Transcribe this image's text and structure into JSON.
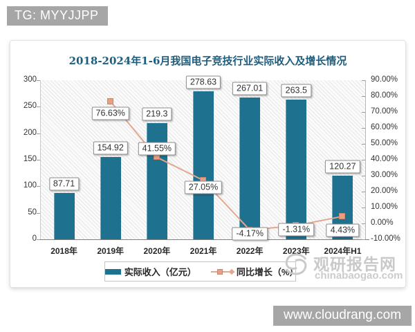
{
  "badges": {
    "tg": "TG: MYYJJPP",
    "site": "www.cloudrang.com"
  },
  "watermark": {
    "name": "观研报告网",
    "domain": "chinabaogao.com"
  },
  "chart_data": {
    "type": "bar+line combo",
    "title": "2018-2024年1-6月我国电子竞技行业实际收入及增长情况",
    "categories": [
      "2018年",
      "2019年",
      "2020年",
      "2021年",
      "2022年",
      "2023年",
      "2024年H1"
    ],
    "series": [
      {
        "name": "实际收入（亿元）",
        "type": "bar",
        "axis": "left",
        "color": "#1f7190",
        "values": [
          87.71,
          154.92,
          219.3,
          278.63,
          267.01,
          263.5,
          120.27
        ],
        "labels": [
          "87.71",
          "154.92",
          "219.3",
          "278.63",
          "267.01",
          "263.5",
          "120.27"
        ]
      },
      {
        "name": "同比增长（%）",
        "type": "line",
        "axis": "right",
        "color": "#e2a78f",
        "marker_color": "#e89f85",
        "values": [
          null,
          76.63,
          41.55,
          27.05,
          -4.17,
          -1.31,
          4.43
        ],
        "labels": [
          null,
          "76.63%",
          "41.55%",
          "27.05%",
          "-4.17%",
          "-1.31%",
          "4.43%"
        ]
      }
    ],
    "left_axis": {
      "min": 0,
      "max": 300,
      "step": 50,
      "ticks": [
        "0",
        "50",
        "100",
        "150",
        "200",
        "250",
        "300"
      ]
    },
    "right_axis": {
      "min": -10,
      "max": 90,
      "step": 10,
      "ticks": [
        "-10.00%",
        "0.00%",
        "10.00%",
        "20.00%",
        "30.00%",
        "40.00%",
        "50.00%",
        "60.00%",
        "70.00%",
        "80.00%",
        "90.00%"
      ]
    },
    "grid": false,
    "legend_position": "bottom",
    "plot_background": "diagonal-hatch",
    "line_label_dy": [
      0,
      17,
      -12,
      10,
      5,
      6,
      20
    ]
  }
}
